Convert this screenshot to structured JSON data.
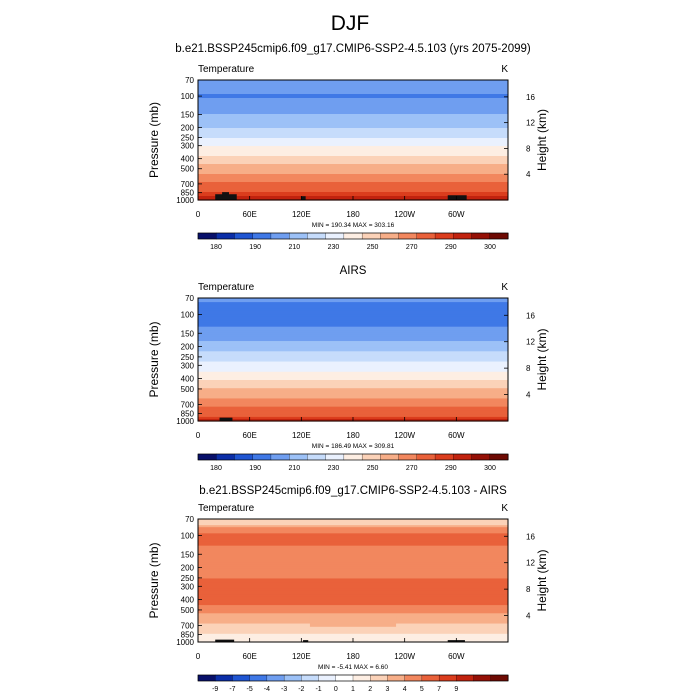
{
  "page": {
    "title": "DJF"
  },
  "colors": {
    "temp_scale": [
      "#08106a",
      "#0b2ea8",
      "#1f55d2",
      "#3f78e6",
      "#6f9ef0",
      "#9cc1f7",
      "#c6dcfb",
      "#eaf1fe",
      "#fdeee3",
      "#fbd2b8",
      "#f7ae88",
      "#f2875e",
      "#e9613a",
      "#db3d1d",
      "#c1220e",
      "#951006",
      "#6e0a03"
    ],
    "diff_scale": [
      "#08106a",
      "#0b2ea8",
      "#1f55d2",
      "#3f78e6",
      "#6f9ef0",
      "#9cc1f7",
      "#c6dcfb",
      "#eaf1fe",
      "#ffffff",
      "#fdeee3",
      "#fbd2b8",
      "#f7ae88",
      "#f2875e",
      "#e9613a",
      "#db3d1d",
      "#c1220e",
      "#951006",
      "#6e0a03"
    ],
    "terrain": "#111111"
  },
  "chart_data": [
    {
      "type": "heatmap",
      "title": "b.e21.BSSP245cmip6.f09_g17.CMIP6-SSP2-4.5.103 (yrs 2075-2099)",
      "left_label": "Temperature",
      "units": "K",
      "xlabel": "",
      "ylabel": "Pressure (mb)",
      "ylabel_right": "Height (km)",
      "x_ticks": [
        "0",
        "60E",
        "120E",
        "180",
        "120W",
        "60W"
      ],
      "x_tick_values": [
        0,
        60,
        120,
        180,
        240,
        300
      ],
      "x_range": [
        0,
        360
      ],
      "y_ticks": [
        "70",
        "100",
        "150",
        "200",
        "250",
        "300",
        "400",
        "500",
        "700",
        "850",
        "1000"
      ],
      "y_tick_values": [
        70,
        100,
        150,
        200,
        250,
        300,
        400,
        500,
        700,
        850,
        1000
      ],
      "y_range": [
        70,
        1000
      ],
      "height_ticks": [
        "16",
        "12",
        "8",
        "4"
      ],
      "height_tick_values": [
        16,
        12,
        8,
        4
      ],
      "stats": "MIN = 190.34   MAX = 303.16",
      "min": 190.34,
      "max": 303.16,
      "profile": [
        {
          "p": 70,
          "v": 205
        },
        {
          "p": 100,
          "v": 199
        },
        {
          "p": 130,
          "v": 205
        },
        {
          "p": 180,
          "v": 216
        },
        {
          "p": 230,
          "v": 226
        },
        {
          "p": 280,
          "v": 235
        },
        {
          "p": 340,
          "v": 245
        },
        {
          "p": 420,
          "v": 256
        },
        {
          "p": 520,
          "v": 267
        },
        {
          "p": 650,
          "v": 279
        },
        {
          "p": 800,
          "v": 288
        },
        {
          "p": 930,
          "v": 296
        },
        {
          "p": 1000,
          "v": 300
        }
      ],
      "terrain": [
        {
          "x0": 20,
          "x1": 45,
          "top": 880
        },
        {
          "x0": 28,
          "x1": 36,
          "top": 840
        },
        {
          "x0": 290,
          "x1": 312,
          "top": 900
        },
        {
          "x0": 120,
          "x1": 125,
          "top": 920
        }
      ],
      "colorbar": {
        "levels": [
          175,
          180,
          185,
          190,
          200,
          210,
          220,
          230,
          240,
          250,
          260,
          270,
          280,
          290,
          295,
          300,
          305
        ],
        "labels": [
          "180",
          "190",
          "210",
          "230",
          "250",
          "270",
          "290",
          "300"
        ]
      }
    },
    {
      "type": "heatmap",
      "title": "AIRS",
      "left_label": "Temperature",
      "units": "K",
      "xlabel": "",
      "ylabel": "Pressure (mb)",
      "ylabel_right": "Height (km)",
      "x_ticks": [
        "0",
        "60E",
        "120E",
        "180",
        "120W",
        "60W"
      ],
      "x_tick_values": [
        0,
        60,
        120,
        180,
        240,
        300
      ],
      "x_range": [
        0,
        360
      ],
      "y_ticks": [
        "70",
        "100",
        "150",
        "200",
        "250",
        "300",
        "400",
        "500",
        "700",
        "850",
        "1000"
      ],
      "y_tick_values": [
        70,
        100,
        150,
        200,
        250,
        300,
        400,
        500,
        700,
        850,
        1000
      ],
      "y_range": [
        70,
        1000
      ],
      "height_ticks": [
        "16",
        "12",
        "8",
        "4"
      ],
      "height_tick_values": [
        16,
        12,
        8,
        4
      ],
      "stats": "MIN = 186.49   MAX = 309.81",
      "min": 186.49,
      "max": 309.81,
      "profile": [
        {
          "p": 70,
          "v": 203
        },
        {
          "p": 100,
          "v": 193
        },
        {
          "p": 130,
          "v": 200
        },
        {
          "p": 180,
          "v": 211
        },
        {
          "p": 230,
          "v": 221
        },
        {
          "p": 280,
          "v": 230
        },
        {
          "p": 340,
          "v": 240
        },
        {
          "p": 420,
          "v": 251
        },
        {
          "p": 520,
          "v": 262
        },
        {
          "p": 650,
          "v": 274
        },
        {
          "p": 800,
          "v": 284
        },
        {
          "p": 930,
          "v": 292
        },
        {
          "p": 1000,
          "v": 297
        }
      ],
      "terrain": [
        {
          "x0": 25,
          "x1": 40,
          "top": 930
        }
      ],
      "colorbar": {
        "levels": [
          175,
          180,
          185,
          190,
          200,
          210,
          220,
          230,
          240,
          250,
          260,
          270,
          280,
          290,
          295,
          300,
          305
        ],
        "labels": [
          "180",
          "190",
          "210",
          "230",
          "250",
          "270",
          "290",
          "300"
        ]
      }
    },
    {
      "type": "heatmap",
      "title": "b.e21.BSSP245cmip6.f09_g17.CMIP6-SSP2-4.5.103 - AIRS",
      "left_label": "Temperature",
      "units": "K",
      "xlabel": "",
      "ylabel": "Pressure (mb)",
      "ylabel_right": "Height (km)",
      "x_ticks": [
        "0",
        "60E",
        "120E",
        "180",
        "120W",
        "60W"
      ],
      "x_tick_values": [
        0,
        60,
        120,
        180,
        240,
        300
      ],
      "x_range": [
        0,
        360
      ],
      "y_ticks": [
        "70",
        "100",
        "150",
        "200",
        "250",
        "300",
        "400",
        "500",
        "700",
        "850",
        "1000"
      ],
      "y_tick_values": [
        70,
        100,
        150,
        200,
        250,
        300,
        400,
        500,
        700,
        850,
        1000
      ],
      "y_range": [
        70,
        1000
      ],
      "height_ticks": [
        "16",
        "12",
        "8",
        "4"
      ],
      "height_tick_values": [
        16,
        12,
        8,
        4
      ],
      "stats": "MIN = -5.41   MAX =   6.60",
      "min": -5.41,
      "max": 6.6,
      "profile": [
        {
          "p": 70,
          "v": 1.5
        },
        {
          "p": 80,
          "v": 3.5
        },
        {
          "p": 100,
          "v": 5.5
        },
        {
          "p": 150,
          "v": 4.5
        },
        {
          "p": 220,
          "v": 4.5
        },
        {
          "p": 300,
          "v": 5.5
        },
        {
          "p": 400,
          "v": 5.5
        },
        {
          "p": 500,
          "v": 4.5
        },
        {
          "p": 600,
          "v": 3.5
        },
        {
          "p": 750,
          "v": 2.5
        },
        {
          "p": 900,
          "v": 1.5
        },
        {
          "p": 1000,
          "v": 1.5
        }
      ],
      "terrain": [
        {
          "x0": 20,
          "x1": 42,
          "top": 950
        },
        {
          "x0": 290,
          "x1": 310,
          "top": 960
        },
        {
          "x0": 122,
          "x1": 128,
          "top": 960
        }
      ],
      "colorbar": {
        "levels": [
          -11,
          -9,
          -7,
          -5,
          -4,
          -3,
          -2,
          -1,
          0,
          1,
          2,
          3,
          4,
          5,
          7,
          9,
          11
        ],
        "labels": [
          "-9",
          "-7",
          "-5",
          "-4",
          "-3",
          "-2",
          "-1",
          "0",
          "1",
          "2",
          "3",
          "4",
          "5",
          "7",
          "9"
        ]
      }
    }
  ]
}
